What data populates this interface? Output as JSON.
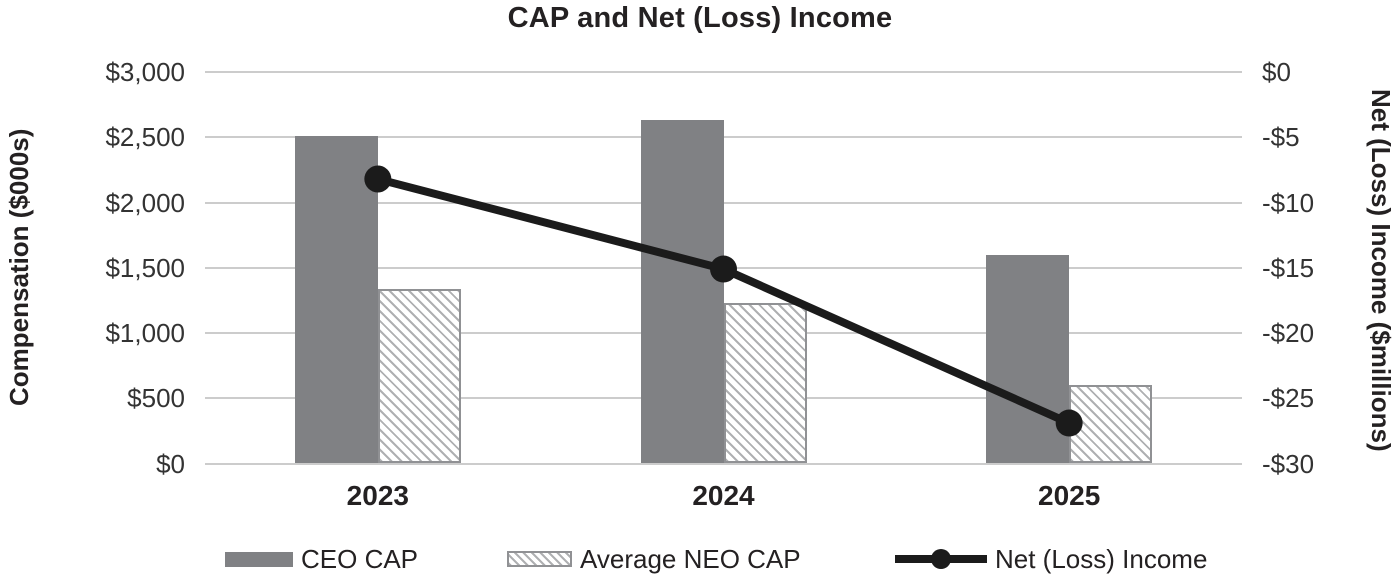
{
  "title": "CAP and Net (Loss) Income",
  "chart_data": {
    "type": "bar",
    "subtype": "combo-bar-line-dual-axis",
    "title": "CAP and Net (Loss) Income",
    "categories": [
      "2023",
      "2024",
      "2025"
    ],
    "series": [
      {
        "name": "CEO CAP",
        "type": "bar",
        "axis": "left",
        "style": "solid-gray",
        "values": [
          2510,
          2630,
          1600
        ]
      },
      {
        "name": "Average NEO CAP",
        "type": "bar",
        "axis": "left",
        "style": "hatched",
        "values": [
          1340,
          1230,
          600
        ]
      },
      {
        "name": "Net (Loss) Income",
        "type": "line",
        "axis": "right",
        "style": "black-line-dot-markers",
        "values": [
          -8.2,
          -15.1,
          -26.9
        ]
      }
    ],
    "left_axis": {
      "label": "Compensation ($000s)",
      "min": 0,
      "max": 3000,
      "step": 500,
      "ticks": [
        "$3,000",
        "$2,500",
        "$2,000",
        "$1,500",
        "$1,000",
        "$500",
        "$0"
      ]
    },
    "right_axis": {
      "label": "Net (Loss) Income ($millions)",
      "min": -30,
      "max": 0,
      "step": 5,
      "ticks": [
        "$0",
        "-$5",
        "-$10",
        "-$15",
        "-$20",
        "-$25",
        "-$30"
      ]
    },
    "grid": true,
    "legend_position": "bottom"
  },
  "colors": {
    "bar_gray": "#808184",
    "hatch_line_gray": "#afb0b2",
    "hatch_border_gray": "#909194",
    "line_black": "#1b1b1b",
    "gridline_gray": "#cccccc",
    "text_dark": "#242122"
  }
}
